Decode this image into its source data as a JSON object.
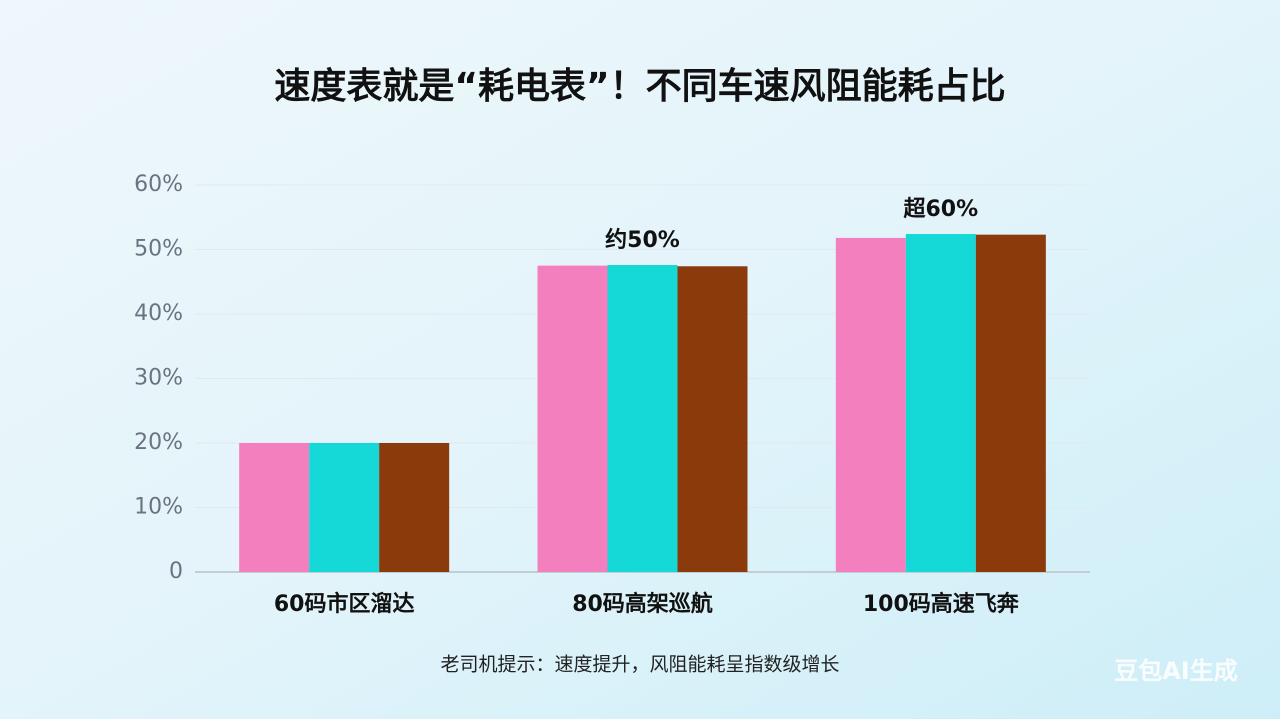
{
  "chart_data": {
    "type": "bar",
    "title": "速度表就是“耗电表”！不同车速风阻能耗占比",
    "categories": [
      "60码市区溜达",
      "80码高架巡航",
      "100码高速飞奔"
    ],
    "series": [
      {
        "color": "#f47fbf",
        "values": [
          20,
          47.5,
          51.8
        ]
      },
      {
        "color": "#14d9d6",
        "values": [
          20,
          47.6,
          52.4
        ]
      },
      {
        "color": "#8b3a0c",
        "values": [
          20,
          47.4,
          52.3
        ]
      }
    ],
    "value_annotations": [
      null,
      "约50%",
      "超60%"
    ],
    "ylim": [
      0,
      60
    ],
    "yticks": [
      0,
      {
        "value": 10,
        "label": "10%"
      },
      {
        "value": 20,
        "label": "20%"
      },
      {
        "value": 30,
        "label": "30%"
      },
      {
        "value": 40,
        "label": "40%"
      },
      {
        "value": 50,
        "label": "50%"
      },
      {
        "value": 60,
        "label": "60%"
      }
    ],
    "grid": true,
    "footnote": "老司机提示：速度提升，风阻能耗呈指数级增长",
    "watermark": "豆包AI生成"
  }
}
